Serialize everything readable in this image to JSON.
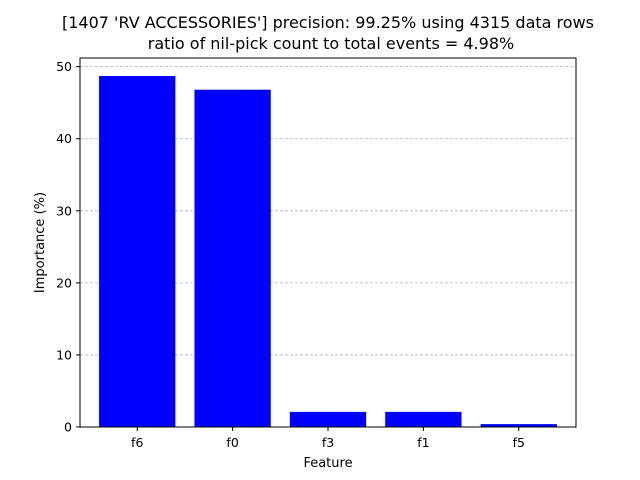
{
  "chart_data": {
    "type": "bar",
    "title_line1": "[1407 'RV ACCESSORIES'] precision: 99.25% using 4315 data rows",
    "title_line2": "ratio of nil-pick count to total events = 4.98%",
    "xlabel": "Feature",
    "ylabel": "Importance (%)",
    "categories": [
      "f6",
      "f0",
      "f3",
      "f1",
      "f5"
    ],
    "values": [
      48.7,
      46.8,
      2.1,
      2.1,
      0.4
    ],
    "ylim": [
      0,
      51.2
    ],
    "yticks": [
      0,
      10,
      20,
      30,
      40,
      50
    ],
    "grid": "y-dashed",
    "bar_color": "#0000ff",
    "grid_color": "#b0b0b0"
  }
}
